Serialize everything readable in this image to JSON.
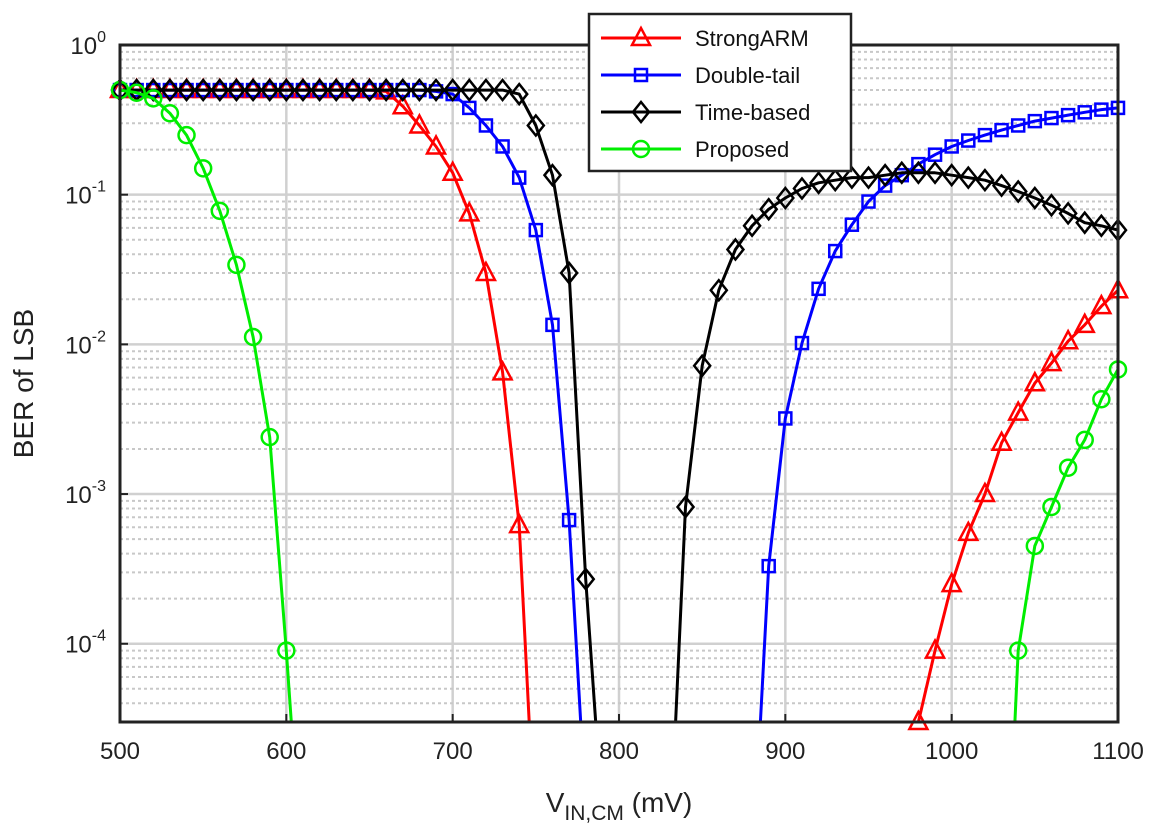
{
  "chart_data": {
    "type": "line",
    "xlabel": "V",
    "xlabel_sub": "IN,CM",
    "xlabel_unit": " (mV)",
    "ylabel": "BER of LSB",
    "xlim": [
      500,
      1100
    ],
    "ylim": [
      3e-05,
      1
    ],
    "yscale": "log",
    "grid": true,
    "legend_position": "top-center",
    "x_ticks": [
      "500",
      "600",
      "700",
      "800",
      "900",
      "1000",
      "1100"
    ],
    "y_ticks": [
      {
        "base": "10",
        "exp": "0"
      },
      {
        "base": "10",
        "exp": "-1"
      },
      {
        "base": "10",
        "exp": "-2"
      },
      {
        "base": "10",
        "exp": "-3"
      },
      {
        "base": "10",
        "exp": "-4"
      }
    ],
    "series": [
      {
        "name": "StrongARM",
        "color": "#ff0000",
        "marker": "triangle",
        "segments": [
          [
            [
              500,
              0.5
            ],
            [
              510,
              0.5
            ],
            [
              520,
              0.5
            ],
            [
              530,
              0.5
            ],
            [
              540,
              0.5
            ],
            [
              550,
              0.5
            ],
            [
              560,
              0.5
            ],
            [
              570,
              0.5
            ],
            [
              580,
              0.5
            ],
            [
              590,
              0.5
            ],
            [
              600,
              0.5
            ],
            [
              610,
              0.5
            ],
            [
              620,
              0.5
            ],
            [
              630,
              0.5
            ],
            [
              640,
              0.5
            ],
            [
              650,
              0.5
            ],
            [
              660,
              0.49
            ],
            [
              670,
              0.39
            ],
            [
              680,
              0.29
            ],
            [
              690,
              0.21
            ],
            [
              700,
              0.14
            ],
            [
              710,
              0.075
            ],
            [
              720,
              0.03
            ],
            [
              730,
              0.0065
            ],
            [
              740,
              0.00062
            ],
            [
              746,
              3e-05
            ]
          ],
          [
            [
              980,
              3e-05
            ],
            [
              990,
              9e-05
            ],
            [
              1000,
              0.00025
            ],
            [
              1010,
              0.00055
            ],
            [
              1020,
              0.001
            ],
            [
              1030,
              0.0022
            ],
            [
              1040,
              0.0035
            ],
            [
              1050,
              0.0055
            ],
            [
              1060,
              0.0075
            ],
            [
              1070,
              0.0105
            ],
            [
              1080,
              0.0135
            ],
            [
              1090,
              0.018
            ],
            [
              1100,
              0.023
            ]
          ]
        ]
      },
      {
        "name": "Double-tail",
        "color": "#0000ff",
        "marker": "square",
        "segments": [
          [
            [
              500,
              0.5
            ],
            [
              510,
              0.5
            ],
            [
              520,
              0.5
            ],
            [
              530,
              0.5
            ],
            [
              540,
              0.5
            ],
            [
              550,
              0.5
            ],
            [
              560,
              0.5
            ],
            [
              570,
              0.5
            ],
            [
              580,
              0.5
            ],
            [
              590,
              0.5
            ],
            [
              600,
              0.5
            ],
            [
              610,
              0.5
            ],
            [
              620,
              0.5
            ],
            [
              630,
              0.5
            ],
            [
              640,
              0.5
            ],
            [
              650,
              0.5
            ],
            [
              660,
              0.5
            ],
            [
              670,
              0.5
            ],
            [
              680,
              0.5
            ],
            [
              690,
              0.49
            ],
            [
              700,
              0.47
            ],
            [
              710,
              0.38
            ],
            [
              720,
              0.29
            ],
            [
              730,
              0.21
            ],
            [
              740,
              0.13
            ],
            [
              750,
              0.058
            ],
            [
              760,
              0.0135
            ],
            [
              770,
              0.00067
            ],
            [
              777,
              3e-05
            ]
          ],
          [
            [
              885,
              3e-05
            ],
            [
              890,
              0.00033
            ],
            [
              900,
              0.0032
            ],
            [
              910,
              0.0102
            ],
            [
              920,
              0.0235
            ],
            [
              930,
              0.042
            ],
            [
              940,
              0.063
            ],
            [
              950,
              0.09
            ],
            [
              960,
              0.115
            ],
            [
              970,
              0.135
            ],
            [
              980,
              0.16
            ],
            [
              990,
              0.185
            ],
            [
              1000,
              0.21
            ],
            [
              1010,
              0.23
            ],
            [
              1020,
              0.25
            ],
            [
              1030,
              0.27
            ],
            [
              1040,
              0.29
            ],
            [
              1050,
              0.31
            ],
            [
              1060,
              0.325
            ],
            [
              1070,
              0.34
            ],
            [
              1080,
              0.355
            ],
            [
              1090,
              0.37
            ],
            [
              1100,
              0.38
            ]
          ]
        ]
      },
      {
        "name": "Time-based",
        "color": "#000000",
        "marker": "diamond",
        "segments": [
          [
            [
              500,
              0.5
            ],
            [
              510,
              0.5
            ],
            [
              520,
              0.5
            ],
            [
              530,
              0.5
            ],
            [
              540,
              0.5
            ],
            [
              550,
              0.5
            ],
            [
              560,
              0.5
            ],
            [
              570,
              0.5
            ],
            [
              580,
              0.5
            ],
            [
              590,
              0.5
            ],
            [
              600,
              0.5
            ],
            [
              610,
              0.5
            ],
            [
              620,
              0.5
            ],
            [
              630,
              0.5
            ],
            [
              640,
              0.5
            ],
            [
              650,
              0.5
            ],
            [
              660,
              0.5
            ],
            [
              670,
              0.5
            ],
            [
              680,
              0.5
            ],
            [
              690,
              0.5
            ],
            [
              700,
              0.5
            ],
            [
              710,
              0.5
            ],
            [
              720,
              0.5
            ],
            [
              730,
              0.5
            ],
            [
              740,
              0.47
            ],
            [
              750,
              0.29
            ],
            [
              760,
              0.135
            ],
            [
              770,
              0.03
            ],
            [
              780,
              0.00027
            ],
            [
              786,
              3e-05
            ]
          ],
          [
            [
              834,
              3e-05
            ],
            [
              840,
              0.00082
            ],
            [
              850,
              0.0072
            ],
            [
              860,
              0.023
            ],
            [
              870,
              0.043
            ],
            [
              880,
              0.062
            ],
            [
              890,
              0.08
            ],
            [
              900,
              0.095
            ],
            [
              910,
              0.11
            ],
            [
              920,
              0.12
            ],
            [
              930,
              0.125
            ],
            [
              940,
              0.13
            ],
            [
              950,
              0.13
            ],
            [
              960,
              0.135
            ],
            [
              970,
              0.14
            ],
            [
              980,
              0.14
            ],
            [
              990,
              0.14
            ],
            [
              1000,
              0.135
            ],
            [
              1010,
              0.13
            ],
            [
              1020,
              0.125
            ],
            [
              1030,
              0.115
            ],
            [
              1040,
              0.105
            ],
            [
              1050,
              0.095
            ],
            [
              1060,
              0.085
            ],
            [
              1070,
              0.075
            ],
            [
              1080,
              0.065
            ],
            [
              1090,
              0.062
            ],
            [
              1100,
              0.058
            ]
          ]
        ]
      },
      {
        "name": "Proposed",
        "color": "#00ee00",
        "marker": "circle",
        "segments": [
          [
            [
              500,
              0.5
            ],
            [
              510,
              0.48
            ],
            [
              520,
              0.44
            ],
            [
              530,
              0.35
            ],
            [
              540,
              0.25
            ],
            [
              550,
              0.15
            ],
            [
              560,
              0.078
            ],
            [
              570,
              0.034
            ],
            [
              580,
              0.0112
            ],
            [
              590,
              0.0024
            ],
            [
              600,
              9e-05
            ],
            [
              603,
              3e-05
            ]
          ],
          [
            [
              1038,
              3e-05
            ],
            [
              1040,
              9e-05
            ],
            [
              1050,
              0.00045
            ],
            [
              1060,
              0.00082
            ],
            [
              1070,
              0.0015
            ],
            [
              1080,
              0.0023
            ],
            [
              1090,
              0.0043
            ],
            [
              1100,
              0.0068
            ]
          ]
        ]
      }
    ]
  }
}
